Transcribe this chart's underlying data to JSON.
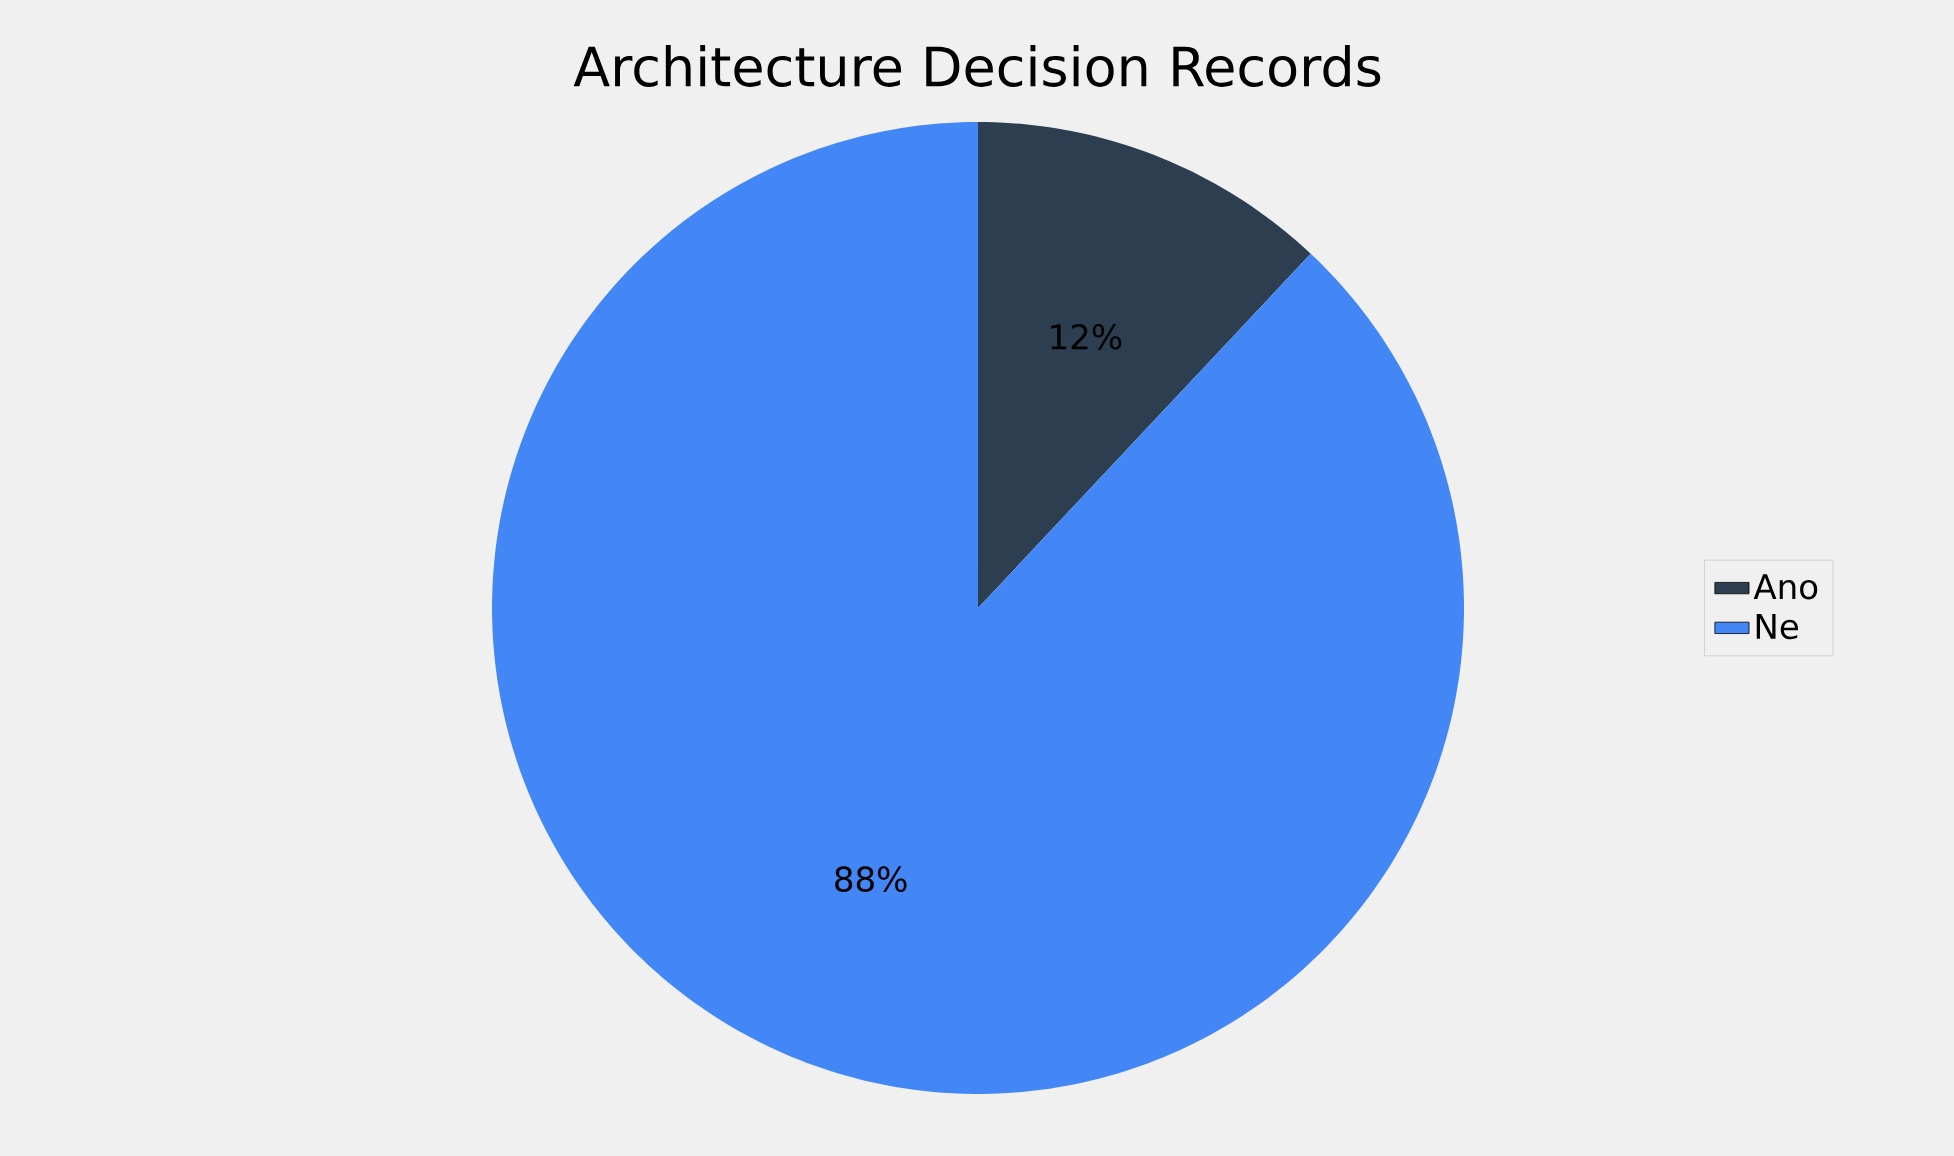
{
  "chart_data": {
    "type": "pie",
    "title": "Architecture Decision Records",
    "categories": [
      "Ano",
      "Ne"
    ],
    "values": [
      12,
      88
    ],
    "value_labels": [
      "12%",
      "88%"
    ],
    "colors": [
      "#2c3e50",
      "#4287f5"
    ],
    "legend": "right"
  }
}
